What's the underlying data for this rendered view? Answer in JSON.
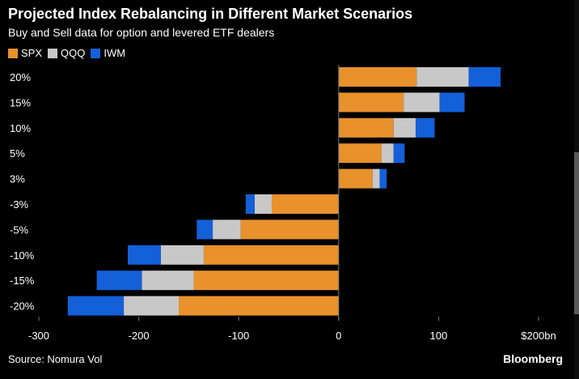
{
  "title": "Projected Index Rebalancing in Different Market Scenarios",
  "subtitle": "Buy and Sell data for option and levered ETF dealers",
  "source": "Source: Nomura Vol",
  "brand": "Bloomberg",
  "colors": {
    "SPX": "#e8912d",
    "QQQ": "#c8c8c8",
    "IWM": "#1360d8",
    "background": "#000000",
    "text": "#ffffff",
    "axis": "#7a7a7a"
  },
  "chart_data": {
    "type": "bar",
    "orientation": "horizontal",
    "stacked": true,
    "categories": [
      "20%",
      "15%",
      "10%",
      "5%",
      "3%",
      "-3%",
      "-5%",
      "-10%",
      "-15%",
      "-20%"
    ],
    "series": [
      {
        "name": "SPX",
        "values": [
          78,
          65,
          55,
          43,
          34,
          -67,
          -98,
          -135,
          -145,
          -160
        ]
      },
      {
        "name": "QQQ",
        "values": [
          52,
          36,
          22,
          12,
          7,
          -17,
          -28,
          -43,
          -52,
          -55
        ]
      },
      {
        "name": "IWM",
        "values": [
          32,
          25,
          19,
          11,
          7,
          -9,
          -16,
          -33,
          -45,
          -56
        ]
      }
    ],
    "xlim": [
      -300,
      200
    ],
    "xticks": [
      -300,
      -200,
      -100,
      0,
      100,
      200
    ],
    "xtick_labels": [
      "-300",
      "-200",
      "-100",
      "0",
      "100",
      "$200bn"
    ],
    "legend": [
      "SPX",
      "QQQ",
      "IWM"
    ],
    "legend_position": "top-left",
    "grid": false
  }
}
